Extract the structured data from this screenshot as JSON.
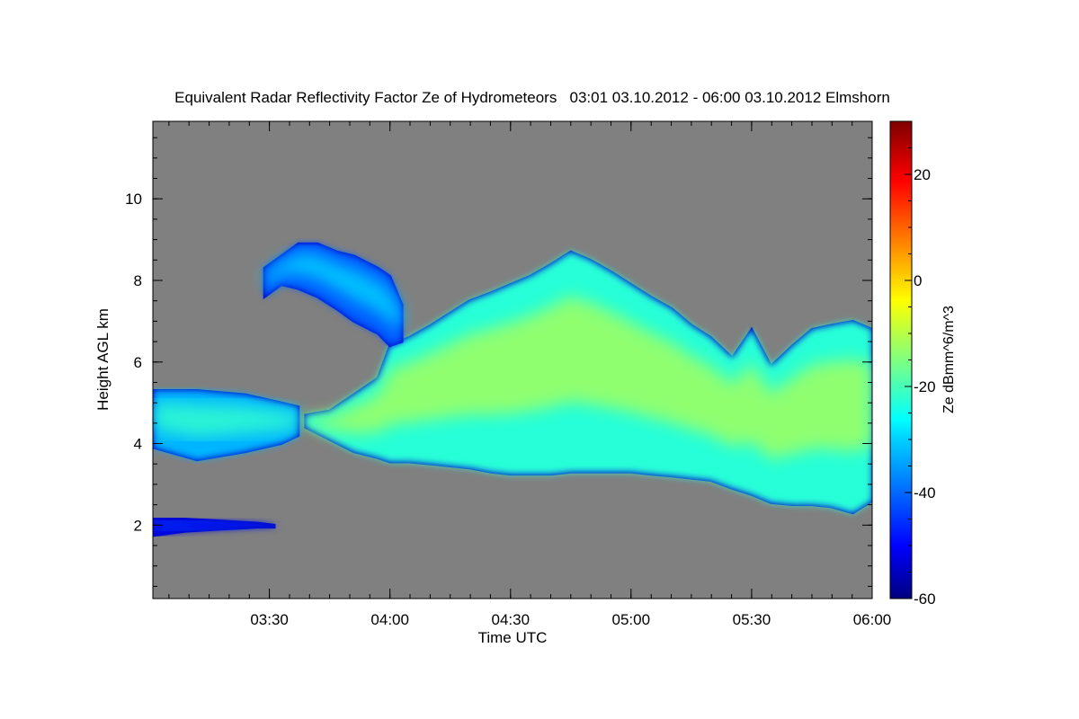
{
  "chart_data": {
    "type": "heatmap",
    "title": "Equivalent Radar Reflectivity Factor Ze of Hydrometeors   03:01 03.10.2012 - 06:00 03.10.2012 Elmshorn",
    "xlabel": "Time UTC",
    "ylabel": "Height AGL km",
    "xlim": [
      "03:01",
      "06:00"
    ],
    "ylim": [
      0.2,
      11.9
    ],
    "x_ticks": [
      "03:30",
      "04:00",
      "04:30",
      "05:00",
      "05:30",
      "06:00"
    ],
    "y_ticks": [
      2,
      4,
      6,
      8,
      10
    ],
    "background_color": "#808080",
    "colorbar": {
      "label": "Ze dBmm^6/m^3",
      "range": [
        -60,
        30
      ],
      "ticks": [
        -60,
        -40,
        -20,
        0,
        20
      ],
      "colormap": "jet"
    },
    "echo_layers": [
      {
        "name_hint": "main precipitation body",
        "x": [
          3.65,
          3.75,
          3.85,
          3.95,
          4.0,
          4.08,
          4.17,
          4.25,
          4.33,
          4.42,
          4.5,
          4.58,
          4.67,
          4.75,
          4.83,
          4.92,
          5.0,
          5.08,
          5.17,
          5.25,
          5.33,
          5.42,
          5.5,
          5.58,
          5.67,
          5.75,
          5.83,
          5.92,
          6.0
        ],
        "top_km": [
          4.7,
          4.8,
          5.2,
          5.6,
          6.4,
          6.6,
          6.9,
          7.2,
          7.5,
          7.7,
          7.9,
          8.1,
          8.4,
          8.7,
          8.5,
          8.2,
          7.9,
          7.6,
          7.3,
          6.9,
          6.6,
          6.1,
          6.8,
          5.9,
          6.4,
          6.8,
          6.9,
          7.0,
          6.8
        ],
        "base_km": [
          4.4,
          4.1,
          3.8,
          3.65,
          3.55,
          3.55,
          3.5,
          3.45,
          3.4,
          3.3,
          3.25,
          3.25,
          3.25,
          3.3,
          3.3,
          3.3,
          3.3,
          3.25,
          3.2,
          3.15,
          3.1,
          2.9,
          2.75,
          2.55,
          2.5,
          2.5,
          2.45,
          2.3,
          2.6
        ],
        "core_max_dbz": -12
      },
      {
        "name_hint": "upper cirrus fallstreak layer",
        "x": [
          3.48,
          3.55,
          3.62,
          3.7,
          3.78,
          3.85,
          3.95,
          4.0,
          4.05
        ],
        "top_km": [
          8.3,
          8.6,
          8.9,
          8.9,
          8.7,
          8.6,
          8.3,
          8.1,
          7.4
        ],
        "base_km": [
          7.6,
          7.9,
          7.8,
          7.6,
          7.3,
          7.0,
          6.7,
          6.4,
          6.5
        ],
        "core_max_dbz": -30
      },
      {
        "name_hint": "mid-level layer",
        "x": [
          3.02,
          3.2,
          3.4,
          3.55,
          3.62
        ],
        "top_km": [
          5.3,
          5.3,
          5.2,
          5.0,
          4.9
        ],
        "base_km": [
          3.9,
          3.6,
          3.8,
          4.0,
          4.2
        ],
        "core_max_dbz": -22
      },
      {
        "name_hint": "low layer",
        "x": [
          3.02,
          3.15,
          3.3,
          3.45,
          3.52
        ],
        "top_km": [
          2.15,
          2.15,
          2.1,
          2.05,
          2.0
        ],
        "base_km": [
          1.75,
          1.85,
          1.9,
          1.95,
          1.95
        ],
        "core_max_dbz": -40
      }
    ]
  }
}
